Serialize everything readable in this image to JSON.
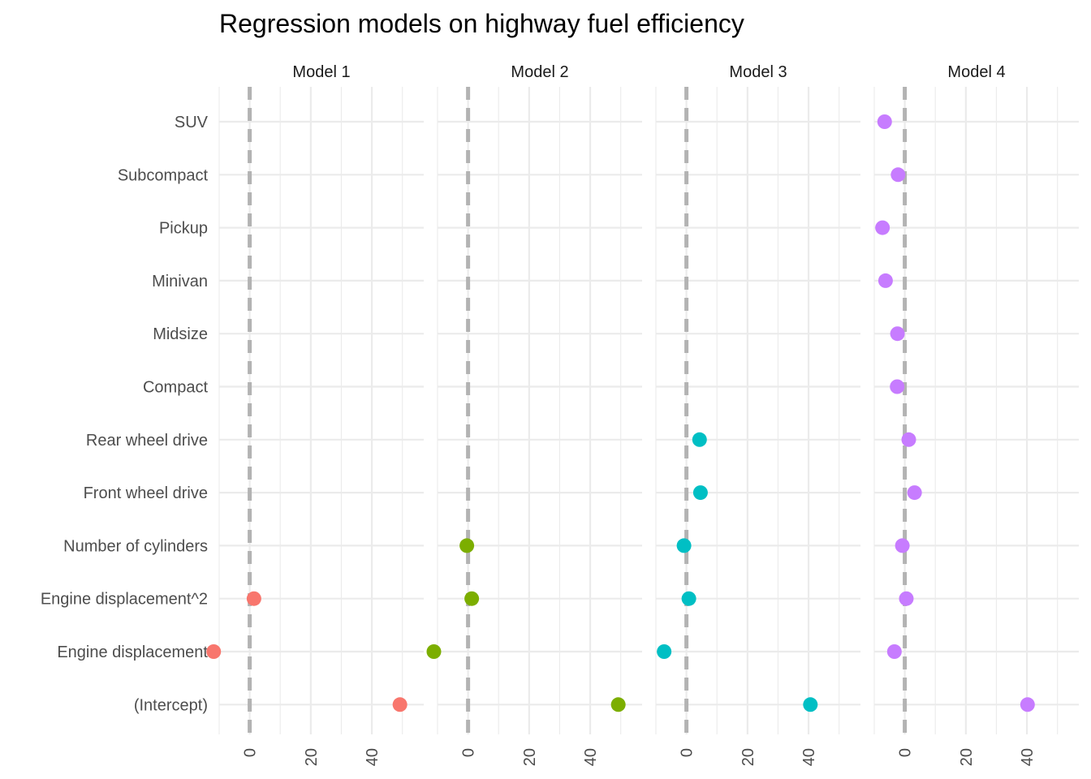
{
  "chart_data": {
    "type": "scatter",
    "title": "Regression models on highway fuel efficiency",
    "xlabel": "",
    "ylabel": "",
    "xlim": [
      -10,
      57
    ],
    "x_ticks": [
      0,
      20,
      40
    ],
    "grid": true,
    "legend": "none",
    "reference_line": {
      "x": 0,
      "style": "dashed",
      "color": "#b3b3b3"
    },
    "categories": [
      "(Intercept)",
      "Engine displacement",
      "Engine displacement^2",
      "Number of cylinders",
      "Front wheel drive",
      "Rear wheel drive",
      "Compact",
      "Midsize",
      "Minivan",
      "Pickup",
      "Subcompact",
      "SUV"
    ],
    "series": [
      {
        "name": "Model 1",
        "color": "#F8766D",
        "values": [
          49.2,
          -11.8,
          1.4,
          null,
          null,
          null,
          null,
          null,
          null,
          null,
          null,
          null
        ]
      },
      {
        "name": "Model 2",
        "color": "#7CAE00",
        "values": [
          49.2,
          -11.2,
          1.2,
          -0.4,
          null,
          null,
          null,
          null,
          null,
          null,
          null,
          null
        ]
      },
      {
        "name": "Model 3",
        "color": "#00BFC4",
        "values": [
          40.6,
          -7.3,
          0.8,
          -0.8,
          4.6,
          4.3,
          null,
          null,
          null,
          null,
          null,
          null
        ]
      },
      {
        "name": "Model 4",
        "color": "#C77CFF",
        "values": [
          40.2,
          -3.4,
          0.5,
          -0.8,
          3.2,
          1.3,
          -2.5,
          -2.4,
          -6.3,
          -7.3,
          -2.2,
          -6.6
        ]
      }
    ]
  }
}
